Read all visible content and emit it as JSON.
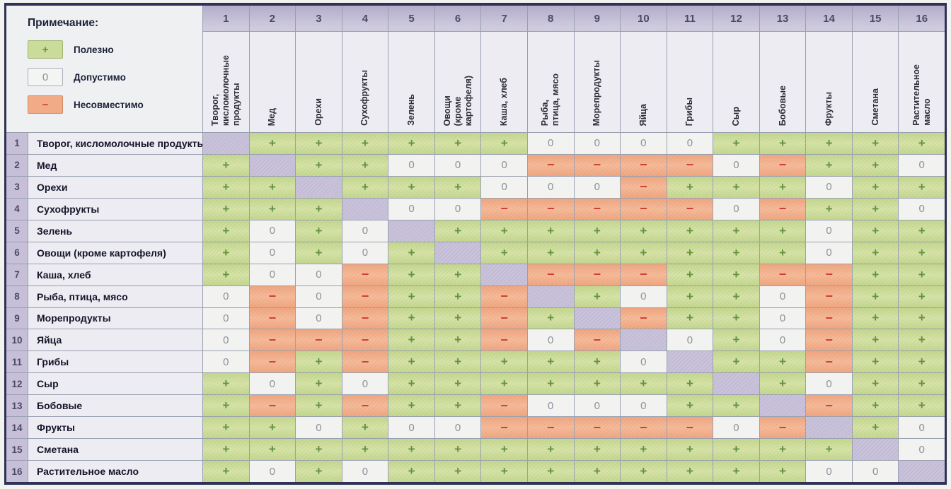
{
  "legend": {
    "title": "Примечание:",
    "items": [
      {
        "symbol": "+",
        "label": "Полезно",
        "class": "good"
      },
      {
        "symbol": "0",
        "label": "Допустимо",
        "class": "ok"
      },
      {
        "symbol": "−",
        "label": "Несовместимо",
        "class": "bad"
      }
    ]
  },
  "col_headers_display": [
    "Творог,\nкисломолочные\nпродукты",
    "Мед",
    "Орехи",
    "Сухофрукты",
    "Зелень",
    "Овощи\n(кроме\nкартофеля)",
    "Каша, хлеб",
    "Рыба,\nптица, мясо",
    "Морепродукты",
    "Яйца",
    "Грибы",
    "Сыр",
    "Бобовые",
    "Фрукты",
    "Сметана",
    "Растительное\nмасло"
  ],
  "symbol_classes": {
    "+": "good",
    "0": "ok",
    "−": "bad",
    "": "self"
  },
  "colors": {
    "good_bg": "#cbdc9a",
    "ok_bg": "#f2f2f0",
    "bad_bg": "#f1ad89",
    "diagonal_bg": "#c9c2da",
    "header_bg": "#c6bfd7",
    "plus": "#64923c",
    "minus": "#d0402c",
    "zero": "#8c919c",
    "gridline": "#99a0b0",
    "outer_border": "#2d3256"
  },
  "chart_data": {
    "type": "table",
    "legend": {
      "+": "Полезно",
      "0": "Допустимо",
      "−": "Несовместимо"
    },
    "products": [
      "Творог, кисломолочные продукты",
      "Мед",
      "Орехи",
      "Сухофрукты",
      "Зелень",
      "Овощи (кроме картофеля)",
      "Каша, хлеб",
      "Рыба, птица, мясо",
      "Морепродукты",
      "Яйца",
      "Грибы",
      "Сыр",
      "Бобовые",
      "Фрукты",
      "Сметана",
      "Растительное масло"
    ],
    "matrix": [
      [
        "",
        "+",
        "+",
        "+",
        "+",
        "+",
        "+",
        "0",
        "0",
        "0",
        "0",
        "+",
        "+",
        "+",
        "+",
        "+"
      ],
      [
        "+",
        "",
        "+",
        "+",
        "0",
        "0",
        "0",
        "−",
        "−",
        "−",
        "−",
        "0",
        "−",
        "+",
        "+",
        "0"
      ],
      [
        "+",
        "+",
        "",
        "+",
        "+",
        "+",
        "0",
        "0",
        "0",
        "−",
        "+",
        "+",
        "+",
        "0",
        "+",
        "+"
      ],
      [
        "+",
        "+",
        "+",
        "",
        "0",
        "0",
        "−",
        "−",
        "−",
        "−",
        "−",
        "0",
        "−",
        "+",
        "+",
        "0"
      ],
      [
        "+",
        "0",
        "+",
        "0",
        "",
        "+",
        "+",
        "+",
        "+",
        "+",
        "+",
        "+",
        "+",
        "0",
        "+",
        "+"
      ],
      [
        "+",
        "0",
        "+",
        "0",
        "+",
        "",
        "+",
        "+",
        "+",
        "+",
        "+",
        "+",
        "+",
        "0",
        "+",
        "+"
      ],
      [
        "+",
        "0",
        "0",
        "−",
        "+",
        "+",
        "",
        "−",
        "−",
        "−",
        "+",
        "+",
        "−",
        "−",
        "+",
        "+"
      ],
      [
        "0",
        "−",
        "0",
        "−",
        "+",
        "+",
        "−",
        "",
        "+",
        "0",
        "+",
        "+",
        "0",
        "−",
        "+",
        "+"
      ],
      [
        "0",
        "−",
        "0",
        "−",
        "+",
        "+",
        "−",
        "+",
        "",
        "−",
        "+",
        "+",
        "0",
        "−",
        "+",
        "+"
      ],
      [
        "0",
        "−",
        "−",
        "−",
        "+",
        "+",
        "−",
        "0",
        "−",
        "",
        "0",
        "+",
        "0",
        "−",
        "+",
        "+"
      ],
      [
        "0",
        "−",
        "+",
        "−",
        "+",
        "+",
        "+",
        "+",
        "+",
        "0",
        "",
        "+",
        "+",
        "−",
        "+",
        "+"
      ],
      [
        "+",
        "0",
        "+",
        "0",
        "+",
        "+",
        "+",
        "+",
        "+",
        "+",
        "+",
        "",
        "+",
        "0",
        "+",
        "+"
      ],
      [
        "+",
        "−",
        "+",
        "−",
        "+",
        "+",
        "−",
        "0",
        "0",
        "0",
        "+",
        "+",
        "",
        "−",
        "+",
        "+"
      ],
      [
        "+",
        "+",
        "0",
        "+",
        "0",
        "0",
        "−",
        "−",
        "−",
        "−",
        "−",
        "0",
        "−",
        "",
        "+",
        "0"
      ],
      [
        "+",
        "+",
        "+",
        "+",
        "+",
        "+",
        "+",
        "+",
        "+",
        "+",
        "+",
        "+",
        "+",
        "+",
        "",
        "0"
      ],
      [
        "+",
        "0",
        "+",
        "0",
        "+",
        "+",
        "+",
        "+",
        "+",
        "+",
        "+",
        "+",
        "+",
        "0",
        "0",
        ""
      ]
    ]
  }
}
